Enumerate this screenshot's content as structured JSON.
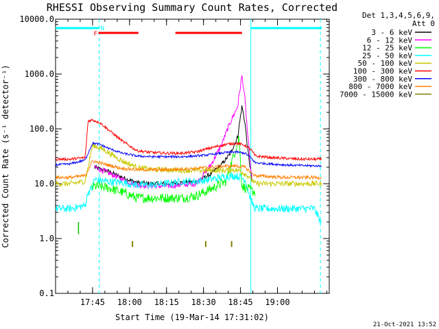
{
  "chart_data": {
    "type": "line",
    "title": "RHESSI Observing Summary Count Rates, Corrected",
    "xlabel": "Start Time (19-Mar-14 17:31:02)",
    "ylabel": "Corrected Count Rate (s⁻¹ detector⁻¹)",
    "y_scale": "log",
    "ylim": [
      0.1,
      10000
    ],
    "x_range_minutes": [
      17.5,
      19.35
    ],
    "x_ticks": [
      {
        "label": "17:45",
        "value": 17.75
      },
      {
        "label": "18:00",
        "value": 18.0
      },
      {
        "label": "18:15",
        "value": 18.25
      },
      {
        "label": "18:30",
        "value": 18.5
      },
      {
        "label": "18:45",
        "value": 18.75
      },
      {
        "label": "19:00",
        "value": 19.0
      }
    ],
    "y_ticks": [
      {
        "label": "10000.0",
        "value": 10000
      },
      {
        "label": "1000.0",
        "value": 1000
      },
      {
        "label": "100.0",
        "value": 100
      },
      {
        "label": "10.0",
        "value": 10
      },
      {
        "label": "1.0",
        "value": 1
      },
      {
        "label": "0.1",
        "value": 0.1
      }
    ],
    "legend_header": [
      "Det 1,3,4,5,6,9,",
      "Att 0"
    ],
    "legend_position": "right",
    "series": [
      {
        "name": "3 - 6 keV",
        "color": "#000000",
        "x": [
          17.5,
          17.73,
          17.76,
          17.85,
          17.95,
          18.05,
          18.15,
          18.25,
          18.35,
          18.45,
          18.55,
          18.62,
          18.68,
          18.73,
          18.76,
          18.78,
          18.8,
          18.83
        ],
        "y": [
          null,
          null,
          20,
          17,
          13,
          10.5,
          10,
          10,
          10.5,
          11,
          15,
          22,
          35,
          70,
          260,
          130,
          40,
          10
        ]
      },
      {
        "name": "6 - 12 keV",
        "color": "#ff00ff",
        "x": [
          17.5,
          17.73,
          17.76,
          17.85,
          17.95,
          18.05,
          18.15,
          18.25,
          18.35,
          18.45,
          18.55,
          18.62,
          18.68,
          18.73,
          18.76,
          18.78,
          18.8,
          18.83
        ],
        "y": [
          null,
          null,
          20,
          16,
          12,
          9.5,
          9,
          9,
          9.5,
          10,
          22,
          50,
          130,
          250,
          950,
          350,
          70,
          10
        ]
      },
      {
        "name": "12 - 25 keV",
        "color": "#00ff00",
        "x": [
          17.5,
          17.6,
          17.7,
          17.74,
          17.76,
          17.85,
          17.95,
          18.05,
          18.15,
          18.25,
          18.35,
          18.45,
          18.55,
          18.65,
          18.7,
          18.74,
          18.76,
          18.8,
          18.85,
          18.9
        ],
        "y": [
          null,
          null,
          null,
          8,
          9,
          8.5,
          7,
          5.5,
          5.5,
          5.5,
          5.5,
          6,
          8,
          11,
          30,
          70,
          9,
          8,
          7,
          null
        ]
      },
      {
        "name": "25 - 50 keV",
        "color": "#00ffff",
        "x": [
          17.5,
          17.6,
          17.7,
          17.72,
          17.75,
          17.76,
          17.85,
          17.95,
          18.05,
          18.15,
          18.25,
          18.35,
          18.45,
          18.55,
          18.65,
          18.72,
          18.78,
          18.82,
          18.85,
          18.95,
          19.05,
          19.1,
          19.25,
          19.3
        ],
        "y": [
          3.5,
          3.5,
          4,
          7,
          8.5,
          12,
          11,
          10.5,
          9.5,
          9.5,
          10,
          11,
          11,
          12,
          13.5,
          14,
          12,
          5,
          3.5,
          3.5,
          3.5,
          3.5,
          3.5,
          1.8
        ]
      },
      {
        "name": "50 - 100 keV",
        "color": "#c8c800",
        "x": [
          17.5,
          17.6,
          17.7,
          17.75,
          17.8,
          17.85,
          17.95,
          18.05,
          18.15,
          18.25,
          18.35,
          18.45,
          18.55,
          18.65,
          18.7,
          18.75,
          18.8,
          18.85,
          18.95,
          19.05,
          19.15,
          19.3
        ],
        "y": [
          10,
          10,
          11,
          50,
          45,
          38,
          26,
          20,
          18,
          18,
          17.5,
          17.5,
          17.5,
          17.5,
          18,
          17,
          14,
          10,
          10,
          10,
          10,
          10
        ]
      },
      {
        "name": "100 - 300 keV",
        "color": "#ff0000",
        "x": [
          17.5,
          17.6,
          17.7,
          17.72,
          17.75,
          17.8,
          17.85,
          17.95,
          18.05,
          18.15,
          18.25,
          18.35,
          18.45,
          18.55,
          18.65,
          18.72,
          18.78,
          18.82,
          18.85,
          18.95,
          19.05,
          19.15,
          19.3
        ],
        "y": [
          28,
          28,
          30,
          140,
          145,
          130,
          100,
          60,
          40,
          37,
          36,
          36,
          38,
          45,
          52,
          55,
          50,
          42,
          32,
          30,
          29,
          28,
          28
        ]
      },
      {
        "name": "300 - 800 keV",
        "color": "#0000ff",
        "x": [
          17.5,
          17.6,
          17.7,
          17.75,
          17.8,
          17.85,
          17.95,
          18.05,
          18.15,
          18.25,
          18.35,
          18.45,
          18.55,
          18.65,
          18.72,
          18.78,
          18.82,
          18.85,
          18.95,
          19.05,
          19.15,
          19.3
        ],
        "y": [
          22,
          23,
          27,
          55,
          52,
          45,
          36,
          32,
          31,
          31,
          31,
          32,
          34,
          37,
          38,
          36,
          30,
          24,
          23,
          22,
          21.5,
          21
        ]
      },
      {
        "name": "800 - 7000 keV",
        "color": "#ff8000",
        "x": [
          17.5,
          17.6,
          17.7,
          17.75,
          17.8,
          17.85,
          17.95,
          18.05,
          18.15,
          18.25,
          18.35,
          18.45,
          18.55,
          18.65,
          18.72,
          18.78,
          18.82,
          18.85,
          18.95,
          19.05,
          19.15,
          19.3
        ],
        "y": [
          13,
          13,
          14,
          26,
          24,
          22,
          19,
          18,
          18,
          18,
          18.5,
          19,
          20,
          21,
          21,
          20,
          16,
          14,
          13.5,
          13,
          13,
          13
        ]
      },
      {
        "name": "7000 - 15000 keV",
        "color": "#808000",
        "x": [
          18.02,
          18.025,
          18.515,
          18.52,
          18.69,
          18.695
        ],
        "y": [
          0.7,
          0.8,
          0.7,
          0.8,
          0.7,
          0.8
        ]
      }
    ],
    "flags": [
      {
        "label": "N",
        "color": "#00ffff",
        "x_start": 17.5,
        "x_end": 17.795
      },
      {
        "label": "",
        "color": "#00ffff",
        "x_start": 18.82,
        "x_end": 19.3
      },
      {
        "label": "F",
        "color": "#ff0000",
        "x_start": 17.79,
        "x_end": 18.06
      },
      {
        "label": "",
        "color": "#ff0000",
        "x_start": 18.31,
        "x_end": 18.76
      }
    ],
    "vertical_lines": [
      {
        "x": 17.795,
        "style": "dashed",
        "color": "#00ffff"
      },
      {
        "x": 18.82,
        "style": "solid",
        "color": "#00ffff"
      },
      {
        "x": 19.29,
        "style": "dashed",
        "color": "#00ffff"
      }
    ],
    "green_bursts": [
      {
        "x": 17.655,
        "y0": 1.2,
        "y1": 2.0
      }
    ]
  },
  "footer": {
    "timestamp": "21-Oct-2021 13:52"
  }
}
